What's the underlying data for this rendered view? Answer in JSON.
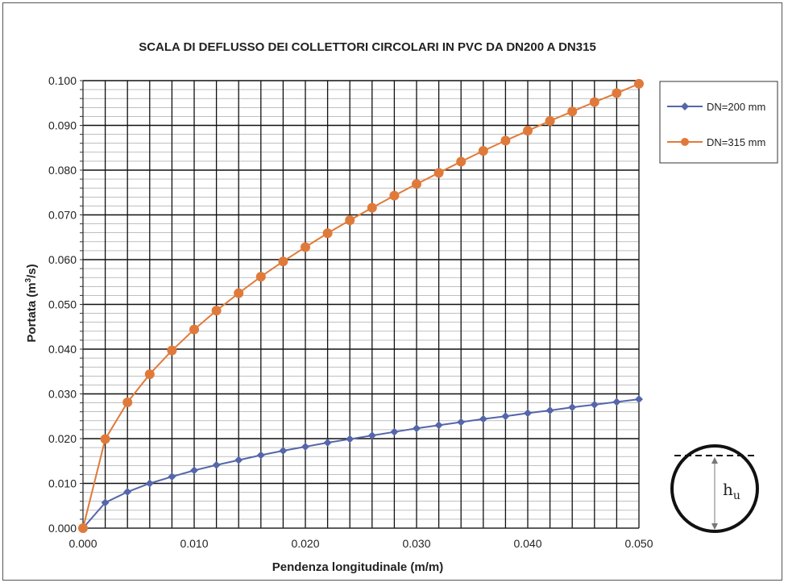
{
  "chart_data": {
    "type": "line",
    "title": "SCALA DI DEFLUSSO DEI COLLETTORI CIRCOLARI IN PVC DA DN200 A DN315",
    "xlabel": "Pendenza longitudinale (m/m)",
    "ylabel_main": "Portata (m",
    "ylabel_sup": "3",
    "ylabel_tail": "/s)",
    "xlim": [
      0,
      0.05
    ],
    "ylim": [
      0,
      0.1
    ],
    "x_ticks": [
      "0.000",
      "0.010",
      "0.020",
      "0.030",
      "0.040",
      "0.050"
    ],
    "y_ticks": [
      "0.000",
      "0.010",
      "0.020",
      "0.030",
      "0.040",
      "0.050",
      "0.060",
      "0.070",
      "0.080",
      "0.090",
      "0.100"
    ],
    "grid": true,
    "legend_position": "right",
    "x": [
      0.0,
      0.002,
      0.004,
      0.006,
      0.008,
      0.01,
      0.012,
      0.014,
      0.016,
      0.018,
      0.02,
      0.022,
      0.024,
      0.026,
      0.028,
      0.03,
      0.032,
      0.034,
      0.036,
      0.038,
      0.04,
      0.042,
      0.044,
      0.046,
      0.048,
      0.05
    ],
    "series": [
      {
        "name": "DN=200 mm",
        "color": "#5566aa",
        "marker": "diamond",
        "values": [
          0.0,
          0.0057,
          0.0081,
          0.01,
          0.0115,
          0.0129,
          0.0141,
          0.0152,
          0.0163,
          0.0173,
          0.0182,
          0.0191,
          0.0199,
          0.0207,
          0.0215,
          0.0223,
          0.023,
          0.0237,
          0.0244,
          0.025,
          0.0257,
          0.0263,
          0.027,
          0.0276,
          0.0282,
          0.0288
        ]
      },
      {
        "name": "DN=315 mm",
        "color": "#e07a3a",
        "marker": "circle",
        "values": [
          0.0,
          0.0199,
          0.0281,
          0.0344,
          0.0397,
          0.0444,
          0.0486,
          0.0525,
          0.0562,
          0.0596,
          0.0628,
          0.0659,
          0.0688,
          0.0716,
          0.0743,
          0.0769,
          0.0794,
          0.0819,
          0.0843,
          0.0866,
          0.0888,
          0.091,
          0.0931,
          0.0952,
          0.0972,
          0.0993
        ]
      }
    ]
  },
  "inset": {
    "label_main": "h",
    "label_sub": "u"
  }
}
